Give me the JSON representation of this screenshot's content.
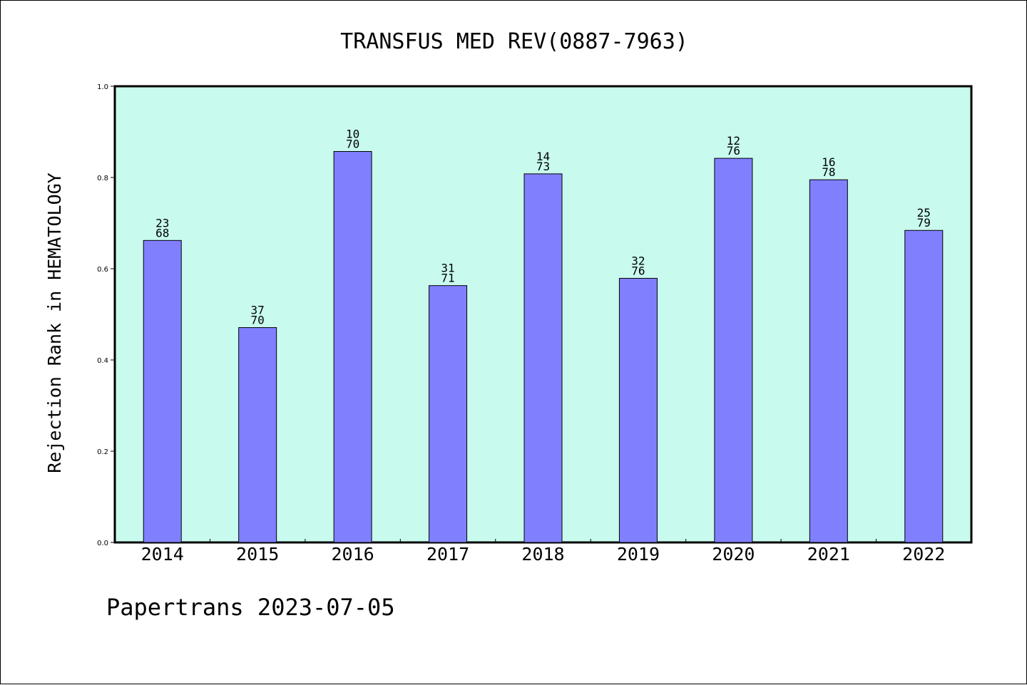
{
  "footer": "Papertrans 2023-07-05",
  "colors": {
    "plot_background": "#c8faee",
    "bar_fill": "#8080ff",
    "axis": "#000000"
  },
  "chart_data": {
    "type": "bar",
    "title": "TRANSFUS MED REV(0887-7963)",
    "xlabel": "",
    "ylabel": "Rejection Rank in HEMATOLOGY",
    "categories": [
      "2014",
      "2015",
      "2016",
      "2017",
      "2018",
      "2019",
      "2020",
      "2021",
      "2022"
    ],
    "values": [
      0.662,
      0.471,
      0.857,
      0.563,
      0.808,
      0.579,
      0.842,
      0.795,
      0.684
    ],
    "bar_labels": [
      [
        "23",
        "68"
      ],
      [
        "37",
        "70"
      ],
      [
        "10",
        "70"
      ],
      [
        "31",
        "71"
      ],
      [
        "14",
        "73"
      ],
      [
        "32",
        "76"
      ],
      [
        "12",
        "76"
      ],
      [
        "16",
        "78"
      ],
      [
        "25",
        "79"
      ]
    ],
    "ylim": [
      0,
      1.0
    ],
    "yticks": [
      "0.0",
      "0.2",
      "0.4",
      "0.6",
      "0.8",
      "1.0"
    ],
    "grid": false,
    "legend": "none"
  }
}
